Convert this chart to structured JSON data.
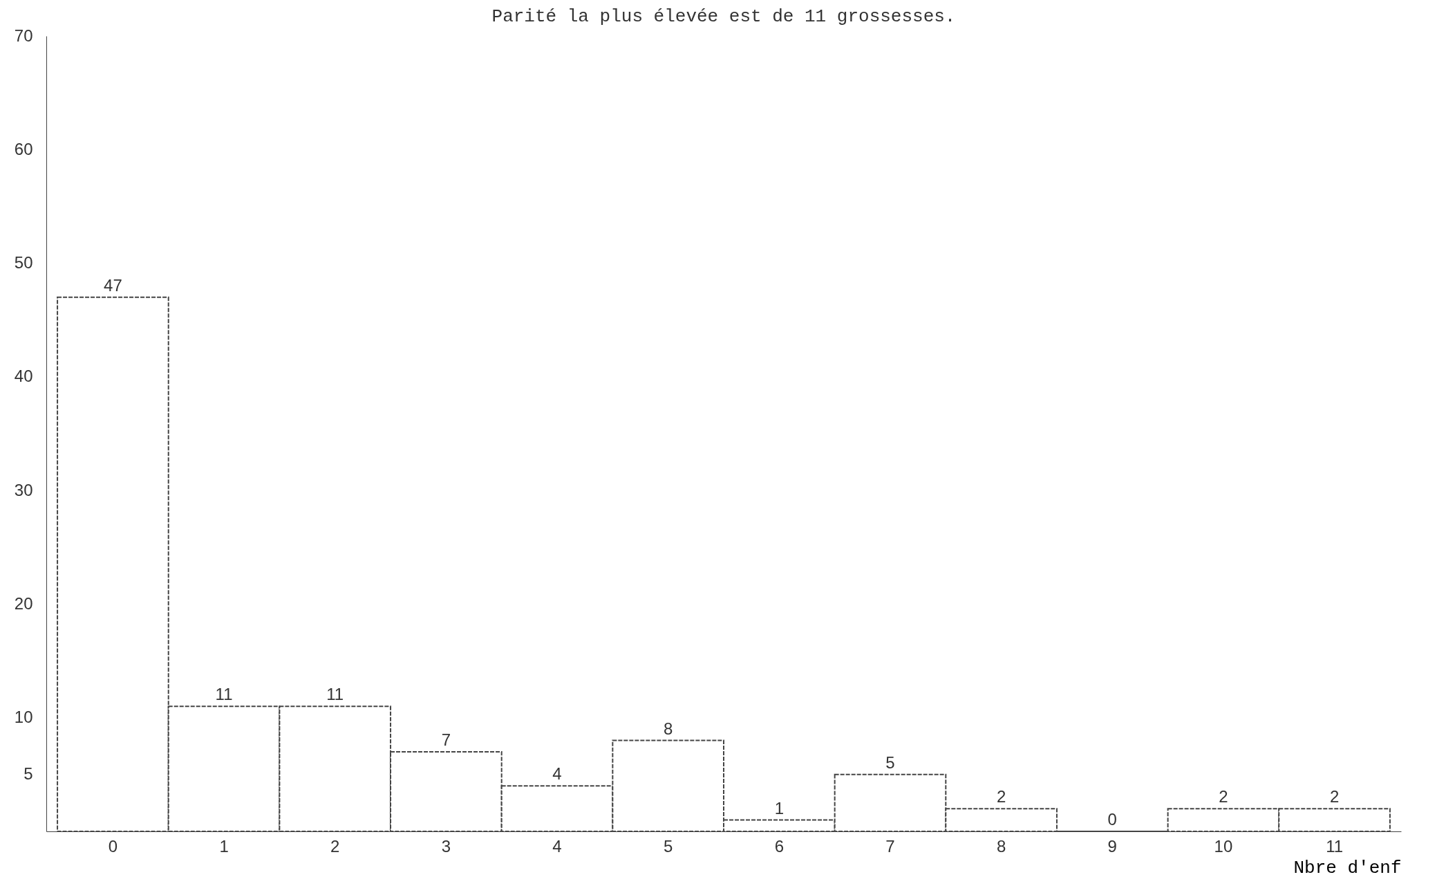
{
  "chart_data": {
    "type": "bar",
    "title": "Parité la plus élevée est de 11 grossesses.",
    "xlabel": "Nbre d'enf",
    "categories": [
      "0",
      "1",
      "2",
      "3",
      "4",
      "5",
      "6",
      "7",
      "8",
      "9",
      "10",
      "11"
    ],
    "values": [
      47,
      11,
      11,
      7,
      4,
      8,
      1,
      5,
      2,
      0,
      2,
      2
    ],
    "color": "#444444",
    "ylim": [
      0,
      70
    ],
    "yticks": [
      5,
      10,
      20,
      30,
      40,
      50,
      60,
      70
    ],
    "data_labels": true,
    "grid": false
  }
}
